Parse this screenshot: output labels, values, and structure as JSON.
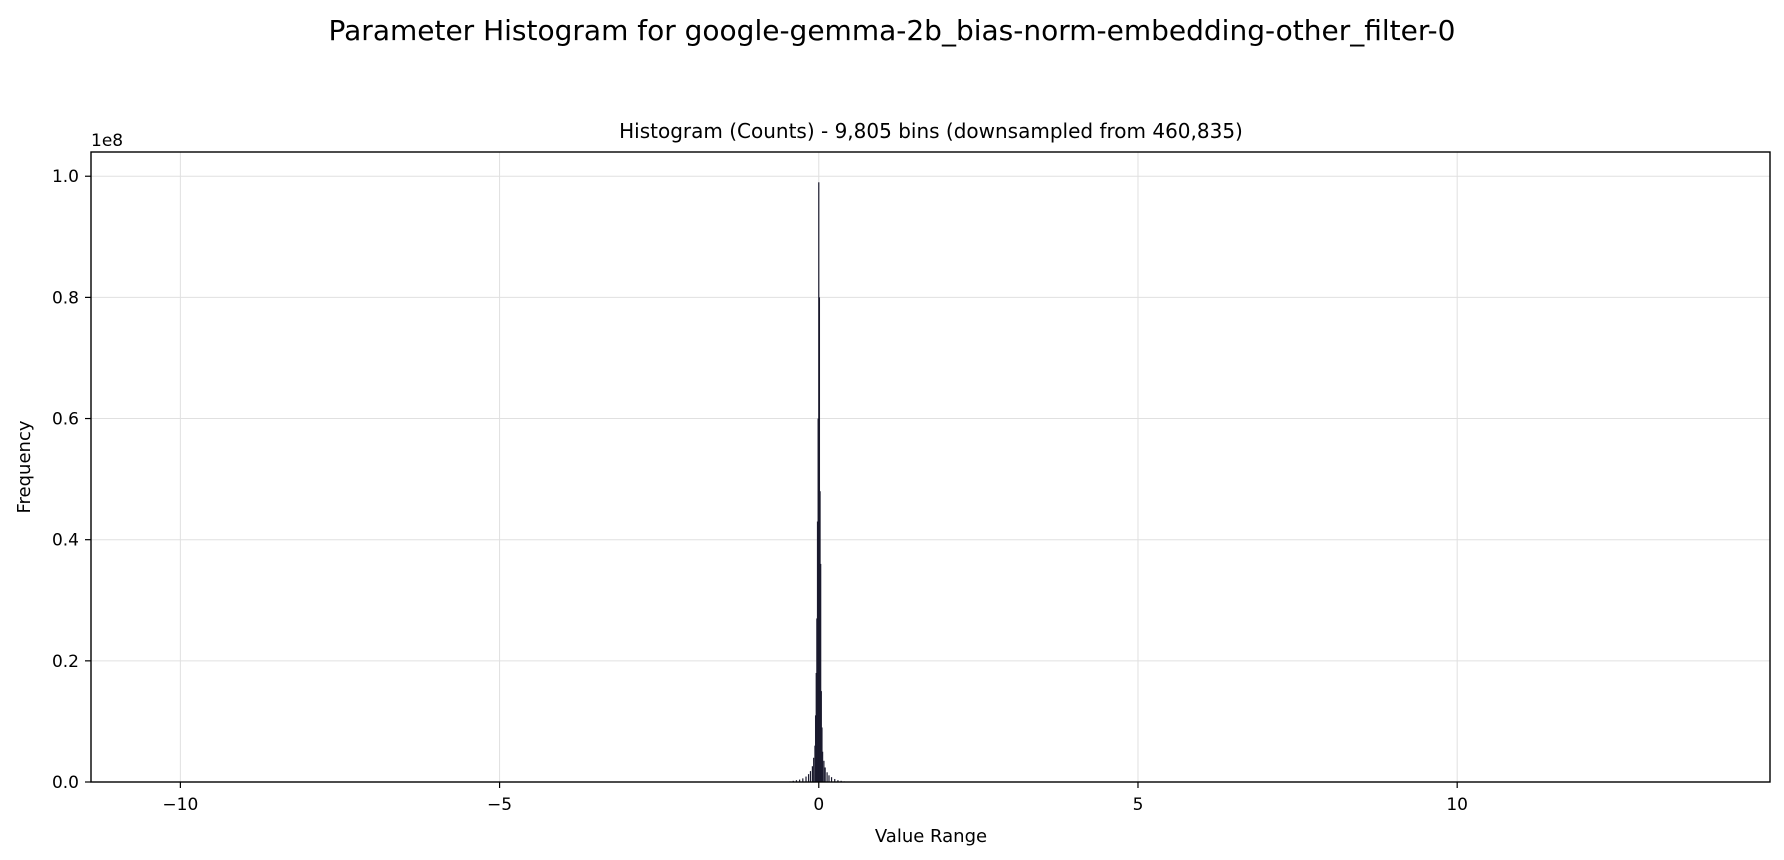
{
  "figure": {
    "suptitle": "Parameter Histogram for google-gemma-2b_bias-norm-embedding-other_filter-0"
  },
  "chart_data": {
    "type": "bar",
    "title": "Histogram (Counts) - 9,805 bins (downsampled from 460,835)",
    "xlabel": "Value Range",
    "ylabel": "Frequency",
    "y_scale_label": "1e8",
    "y_multiplier": 100000000,
    "xlim": [
      -11.4,
      14.9
    ],
    "ylim": [
      0,
      1.04
    ],
    "x_ticks": [
      -10,
      -5,
      0,
      5,
      10
    ],
    "x_tick_labels": [
      "−10",
      "−5",
      "0",
      "5",
      "10"
    ],
    "y_ticks": [
      0.0,
      0.2,
      0.4,
      0.6,
      0.8,
      1.0
    ],
    "y_tick_labels": [
      "0.0",
      "0.2",
      "0.4",
      "0.6",
      "0.8",
      "1.0"
    ],
    "grid": true,
    "legend": "none",
    "bar_color": "#1a1a2e",
    "grid_color": "#e0e0e0",
    "bins": [
      {
        "x": -0.45,
        "y": 0.001
      },
      {
        "x": -0.4,
        "y": 0.002
      },
      {
        "x": -0.35,
        "y": 0.003
      },
      {
        "x": -0.3,
        "y": 0.004
      },
      {
        "x": -0.25,
        "y": 0.006
      },
      {
        "x": -0.2,
        "y": 0.009
      },
      {
        "x": -0.16,
        "y": 0.013
      },
      {
        "x": -0.13,
        "y": 0.018
      },
      {
        "x": -0.1,
        "y": 0.026
      },
      {
        "x": -0.08,
        "y": 0.04
      },
      {
        "x": -0.06,
        "y": 0.06
      },
      {
        "x": -0.05,
        "y": 0.11
      },
      {
        "x": -0.04,
        "y": 0.18
      },
      {
        "x": -0.03,
        "y": 0.27
      },
      {
        "x": -0.02,
        "y": 0.43
      },
      {
        "x": -0.01,
        "y": 0.6
      },
      {
        "x": 0.0,
        "y": 0.99
      },
      {
        "x": 0.01,
        "y": 0.8
      },
      {
        "x": 0.02,
        "y": 0.48
      },
      {
        "x": 0.03,
        "y": 0.36
      },
      {
        "x": 0.04,
        "y": 0.15
      },
      {
        "x": 0.05,
        "y": 0.09
      },
      {
        "x": 0.06,
        "y": 0.05
      },
      {
        "x": 0.08,
        "y": 0.035
      },
      {
        "x": 0.1,
        "y": 0.024
      },
      {
        "x": 0.13,
        "y": 0.016
      },
      {
        "x": 0.16,
        "y": 0.011
      },
      {
        "x": 0.2,
        "y": 0.008
      },
      {
        "x": 0.25,
        "y": 0.005
      },
      {
        "x": 0.3,
        "y": 0.003
      },
      {
        "x": 0.35,
        "y": 0.002
      },
      {
        "x": 0.4,
        "y": 0.001
      },
      {
        "x": 0.45,
        "y": 0.0006
      }
    ]
  }
}
